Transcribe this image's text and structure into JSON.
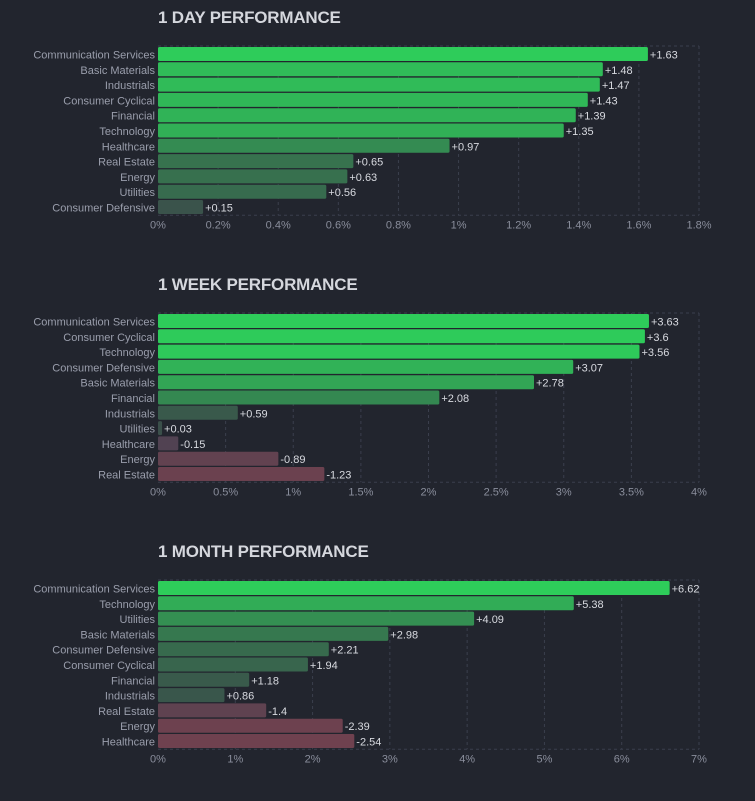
{
  "chart_data": [
    {
      "type": "bar",
      "orientation": "horizontal",
      "title": "1 DAY PERFORMANCE",
      "categories": [
        "Communication Services",
        "Basic Materials",
        "Industrials",
        "Consumer Cyclical",
        "Financial",
        "Technology",
        "Healthcare",
        "Real Estate",
        "Energy",
        "Utilities",
        "Consumer Defensive"
      ],
      "values": [
        1.63,
        1.48,
        1.47,
        1.43,
        1.39,
        1.35,
        0.97,
        0.65,
        0.63,
        0.56,
        0.15
      ],
      "value_labels": [
        "+1.63",
        "+1.48",
        "+1.47",
        "+1.43",
        "+1.39",
        "+1.35",
        "+0.97",
        "+0.65",
        "+0.63",
        "+0.56",
        "+0.15"
      ],
      "xlim": [
        0,
        1.8
      ],
      "xticks": [
        0,
        0.2,
        0.4,
        0.6,
        0.8,
        1,
        1.2,
        1.4,
        1.6,
        1.8
      ],
      "xtick_labels": [
        "0%",
        "0.2%",
        "0.4%",
        "0.6%",
        "0.8%",
        "1%",
        "1.2%",
        "1.4%",
        "1.6%",
        "1.8%"
      ],
      "xlabel": "",
      "ylabel": "",
      "grid": true,
      "bar_length": "absolute value"
    },
    {
      "type": "bar",
      "orientation": "horizontal",
      "title": "1 WEEK PERFORMANCE",
      "categories": [
        "Communication Services",
        "Consumer Cyclical",
        "Technology",
        "Consumer Defensive",
        "Basic Materials",
        "Financial",
        "Industrials",
        "Utilities",
        "Healthcare",
        "Energy",
        "Real Estate"
      ],
      "values": [
        3.63,
        3.6,
        3.56,
        3.07,
        2.78,
        2.08,
        0.59,
        0.03,
        -0.15,
        -0.89,
        -1.23
      ],
      "value_labels": [
        "+3.63",
        "+3.6",
        "+3.56",
        "+3.07",
        "+2.78",
        "+2.08",
        "+0.59",
        "+0.03",
        "-0.15",
        "-0.89",
        "-1.23"
      ],
      "xlim": [
        0,
        4
      ],
      "xticks": [
        0,
        0.5,
        1,
        1.5,
        2,
        2.5,
        3,
        3.5,
        4
      ],
      "xtick_labels": [
        "0%",
        "0.5%",
        "1%",
        "1.5%",
        "2%",
        "2.5%",
        "3%",
        "3.5%",
        "4%"
      ],
      "xlabel": "",
      "ylabel": "",
      "grid": true,
      "bar_length": "absolute value"
    },
    {
      "type": "bar",
      "orientation": "horizontal",
      "title": "1 MONTH PERFORMANCE",
      "categories": [
        "Communication Services",
        "Technology",
        "Utilities",
        "Basic Materials",
        "Consumer Defensive",
        "Consumer Cyclical",
        "Financial",
        "Industrials",
        "Real Estate",
        "Energy",
        "Healthcare"
      ],
      "values": [
        6.62,
        5.38,
        4.09,
        2.98,
        2.21,
        1.94,
        1.18,
        0.86,
        -1.4,
        -2.39,
        -2.54
      ],
      "value_labels": [
        "+6.62",
        "+5.38",
        "+4.09",
        "+2.98",
        "+2.21",
        "+1.94",
        "+1.18",
        "+0.86",
        "-1.4",
        "-2.39",
        "-2.54"
      ],
      "xlim": [
        0,
        7
      ],
      "xticks": [
        0,
        1,
        2,
        3,
        4,
        5,
        6,
        7
      ],
      "xtick_labels": [
        "0%",
        "1%",
        "2%",
        "3%",
        "4%",
        "5%",
        "6%",
        "7%"
      ],
      "xlabel": "",
      "ylabel": "",
      "grid": true,
      "bar_length": "absolute value"
    }
  ],
  "colors": {
    "background": "#22252e",
    "positive_strong": "#2ecc5a",
    "positive_weak": "#3a4f4a",
    "neutral": "#474a5a",
    "negative_weak": "#4e4252",
    "negative_strong": "#ac4048",
    "grid": "#3b3f4d"
  }
}
